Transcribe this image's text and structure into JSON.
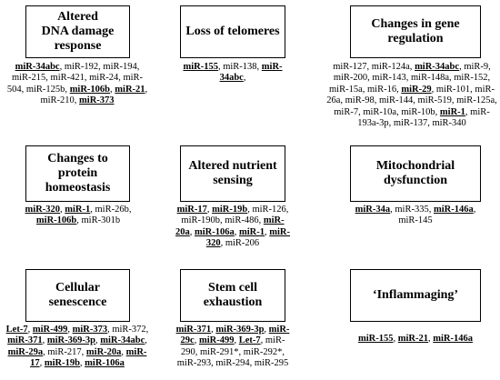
{
  "cells": [
    {
      "title": [
        "Altered",
        "DNA damage",
        "response"
      ],
      "mirs": [
        {
          "t": "miR-34abc",
          "b": true
        },
        {
          "t": ", miR-192, miR-194, miR-215, miR-421, miR-24, miR-504, miR-125b, ",
          "b": false
        },
        {
          "t": "miR-106b",
          "b": true
        },
        {
          "t": ", ",
          "b": false
        },
        {
          "t": "miR-21",
          "b": true
        },
        {
          "t": ", miR-210, ",
          "b": false
        },
        {
          "t": "miR-373",
          "b": true
        }
      ]
    },
    {
      "title": [
        "Loss of telomeres"
      ],
      "mirs": [
        {
          "t": "miR-155",
          "b": true
        },
        {
          "t": ", miR-138, ",
          "b": false
        },
        {
          "t": "miR-34abc",
          "b": true
        },
        {
          "t": ",",
          "b": false
        }
      ]
    },
    {
      "title": [
        "Changes in gene",
        "regulation"
      ],
      "mirs": [
        {
          "t": "miR-127, miR-124a, ",
          "b": false
        },
        {
          "t": "miR-34abc",
          "b": true
        },
        {
          "t": ", miR-9, miR-200, miR-143, miR-148a, miR-152, miR-15a, miR-16, ",
          "b": false
        },
        {
          "t": "miR-29",
          "b": true
        },
        {
          "t": ", miR-101, miR-26a, miR-98, miR-144, miR-519, miR-125a, miR-7, miR-10a, miR-10b, ",
          "b": false
        },
        {
          "t": "miR-1",
          "b": true
        },
        {
          "t": ", miR-193a-3p, miR-137, miR-340",
          "b": false
        }
      ]
    },
    {
      "title": [
        "Changes to",
        "protein",
        "homeostasis"
      ],
      "mirs": [
        {
          "t": "miR-320",
          "b": true
        },
        {
          "t": ", ",
          "b": false
        },
        {
          "t": "miR-1",
          "b": true
        },
        {
          "t": ", miR-26b, ",
          "b": false
        },
        {
          "t": "miR-106b",
          "b": true
        },
        {
          "t": ", miR-301b",
          "b": false
        }
      ]
    },
    {
      "title": [
        "Altered nutrient",
        "sensing"
      ],
      "mirs": [
        {
          "t": "miR-17",
          "b": true
        },
        {
          "t": ", ",
          "b": false
        },
        {
          "t": "miR-19b",
          "b": true
        },
        {
          "t": ", miR-126, miR-190b, miR-486, ",
          "b": false
        },
        {
          "t": "miR-20a",
          "b": true
        },
        {
          "t": ", ",
          "b": false
        },
        {
          "t": "miR-106a",
          "b": true
        },
        {
          "t": ", ",
          "b": false
        },
        {
          "t": "miR-1",
          "b": true
        },
        {
          "t": ", ",
          "b": false
        },
        {
          "t": "miR-320",
          "b": true
        },
        {
          "t": ", miR-206",
          "b": false
        }
      ]
    },
    {
      "title": [
        "Mitochondrial",
        "dysfunction"
      ],
      "mirs": [
        {
          "t": "miR-34a",
          "b": true
        },
        {
          "t": ", miR-335, ",
          "b": false
        },
        {
          "t": "miR-146a",
          "b": true
        },
        {
          "t": ", miR-145",
          "b": false
        }
      ]
    },
    {
      "title": [
        "Cellular",
        "senescence"
      ],
      "mirs": [
        {
          "t": "Let-7",
          "b": true
        },
        {
          "t": ", ",
          "b": false
        },
        {
          "t": "miR-499",
          "b": true
        },
        {
          "t": ", ",
          "b": false
        },
        {
          "t": "miR-373",
          "b": true
        },
        {
          "t": ", miR-372, ",
          "b": false
        },
        {
          "t": "miR-371",
          "b": true
        },
        {
          "t": ", ",
          "b": false
        },
        {
          "t": "miR-369-3p",
          "b": true
        },
        {
          "t": ", ",
          "b": false
        },
        {
          "t": "miR-34abc",
          "b": true
        },
        {
          "t": ", ",
          "b": false
        },
        {
          "t": "miR-29a",
          "b": true
        },
        {
          "t": ", miR-217, ",
          "b": false
        },
        {
          "t": "miR-20a",
          "b": true
        },
        {
          "t": ", ",
          "b": false
        },
        {
          "t": "miR-17",
          "b": true
        },
        {
          "t": ", ",
          "b": false
        },
        {
          "t": "miR-19b",
          "b": true
        },
        {
          "t": ", ",
          "b": false
        },
        {
          "t": "miR-106a",
          "b": true
        }
      ]
    },
    {
      "title": [
        "Stem cell",
        "exhaustion"
      ],
      "mirs": [
        {
          "t": "miR-371",
          "b": true
        },
        {
          "t": ", ",
          "b": false
        },
        {
          "t": "miR-369-3p",
          "b": true
        },
        {
          "t": ", ",
          "b": false
        },
        {
          "t": "miR-29c",
          "b": true
        },
        {
          "t": ", ",
          "b": false
        },
        {
          "t": "miR-499",
          "b": true
        },
        {
          "t": ", ",
          "b": false
        },
        {
          "t": "Let-7",
          "b": true
        },
        {
          "t": ", miR-290, miR-291*, miR-292*, miR-293, miR-294, miR-295",
          "b": false
        }
      ]
    },
    {
      "title": [
        "‘Inflammaging’"
      ],
      "mirs": [
        {
          "t": "miR-155",
          "b": true
        },
        {
          "t": ", ",
          "b": false
        },
        {
          "t": "miR-21",
          "b": true
        },
        {
          "t": ", ",
          "b": false
        },
        {
          "t": "miR-146a",
          "b": true
        }
      ]
    }
  ]
}
